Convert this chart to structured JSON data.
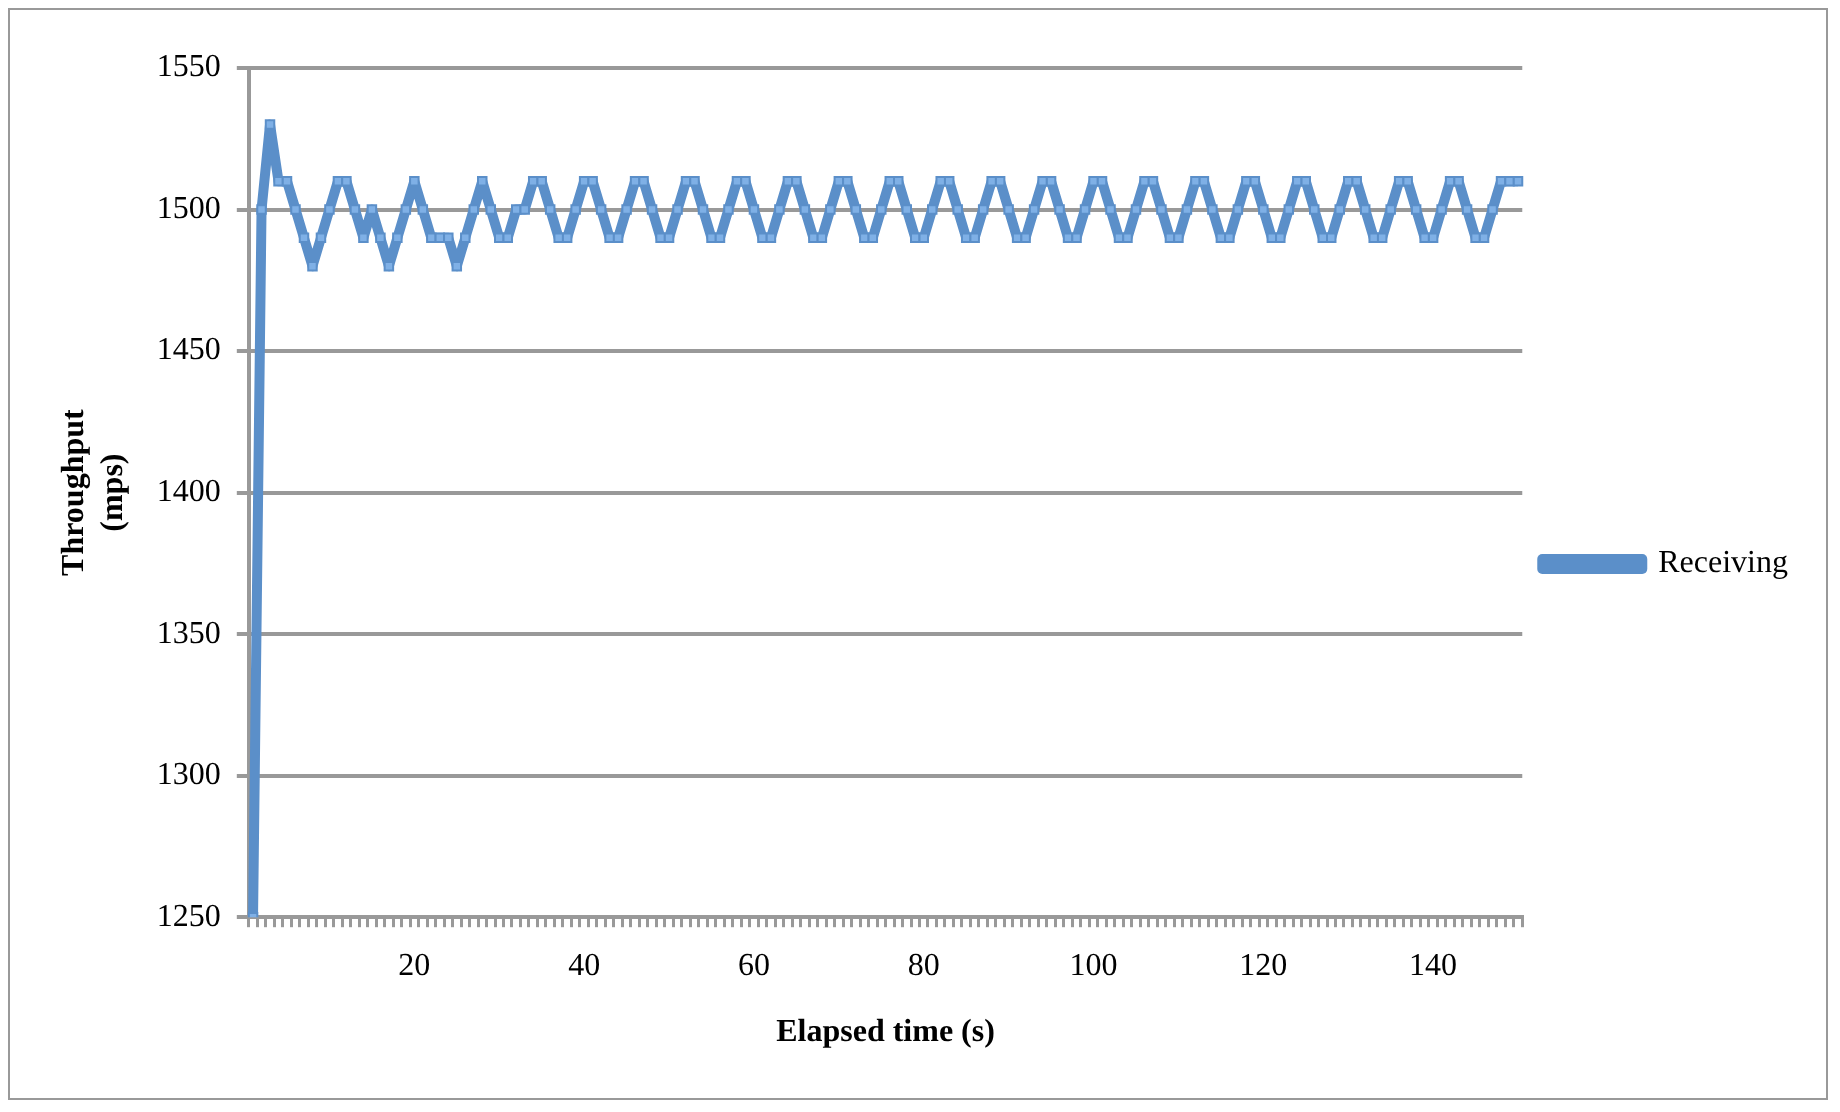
{
  "chart_data": {
    "type": "line",
    "xlabel": "Elapsed time (s)",
    "ylabel": "Throughput\n(mps)",
    "categories": [
      null,
      null,
      null,
      null,
      null,
      null,
      null,
      null,
      null,
      null,
      null,
      null,
      null,
      null,
      null,
      null,
      null,
      null,
      null,
      "20",
      null,
      null,
      null,
      null,
      null,
      null,
      null,
      null,
      null,
      null,
      null,
      null,
      null,
      null,
      null,
      null,
      null,
      null,
      null,
      "40",
      null,
      null,
      null,
      null,
      null,
      null,
      null,
      null,
      null,
      null,
      null,
      null,
      null,
      null,
      null,
      null,
      null,
      null,
      null,
      "60",
      null,
      null,
      null,
      null,
      null,
      null,
      null,
      null,
      null,
      null,
      null,
      null,
      null,
      null,
      null,
      null,
      null,
      null,
      null,
      "80",
      null,
      null,
      null,
      null,
      null,
      null,
      null,
      null,
      null,
      null,
      null,
      null,
      null,
      null,
      null,
      null,
      null,
      null,
      null,
      "100",
      null,
      null,
      null,
      null,
      null,
      null,
      null,
      null,
      null,
      null,
      null,
      null,
      null,
      null,
      null,
      null,
      null,
      null,
      null,
      "120",
      null,
      null,
      null,
      null,
      null,
      null,
      null,
      null,
      null,
      null,
      null,
      null,
      null,
      null,
      null,
      null,
      null,
      null,
      null,
      "140",
      null,
      null,
      null,
      null,
      null,
      null,
      null,
      null,
      null,
      null
    ],
    "series": [
      {
        "name": "Receiving",
        "color": "#5b8fc9",
        "values": [
          1250,
          1500,
          1530,
          1510,
          1510,
          1500,
          1490,
          1480,
          1490,
          1500,
          1510,
          1510,
          1500,
          1490,
          1500,
          1490,
          1480,
          1490,
          1500,
          1510,
          1500,
          1490,
          1490,
          1490,
          1480,
          1490,
          1500,
          1510,
          1500,
          1490,
          1490,
          1500,
          1500,
          1510,
          1510,
          1500,
          1490,
          1490,
          1500,
          1510,
          1510,
          1500,
          1490,
          1490,
          1500,
          1510,
          1510,
          1500,
          1490,
          1490,
          1500,
          1510,
          1510,
          1500,
          1490,
          1490,
          1500,
          1510,
          1510,
          1500,
          1490,
          1490,
          1500,
          1510,
          1510,
          1500,
          1490,
          1490,
          1500,
          1510,
          1510,
          1500,
          1490,
          1490,
          1500,
          1510,
          1510,
          1500,
          1490,
          1490,
          1500,
          1510,
          1510,
          1500,
          1490,
          1490,
          1500,
          1510,
          1510,
          1500,
          1490,
          1490,
          1500,
          1510,
          1510,
          1500,
          1490,
          1490,
          1500,
          1510,
          1510,
          1500,
          1490,
          1490,
          1500,
          1510,
          1510,
          1500,
          1490,
          1490,
          1500,
          1510,
          1510,
          1500,
          1490,
          1490,
          1500,
          1510,
          1510,
          1500,
          1490,
          1490,
          1500,
          1510,
          1510,
          1500,
          1490,
          1490,
          1500,
          1510,
          1510,
          1500,
          1490,
          1490,
          1500,
          1510,
          1510,
          1500,
          1490,
          1490,
          1500,
          1510,
          1510,
          1500,
          1490,
          1490,
          1500,
          1510,
          1510,
          1510
        ]
      }
    ],
    "ylim": [
      1250,
      1550
    ],
    "yticks": [
      1250,
      1300,
      1350,
      1400,
      1450,
      1500,
      1550
    ],
    "grid": "y",
    "legend": "right",
    "marker": "square",
    "line_style": "solid"
  }
}
